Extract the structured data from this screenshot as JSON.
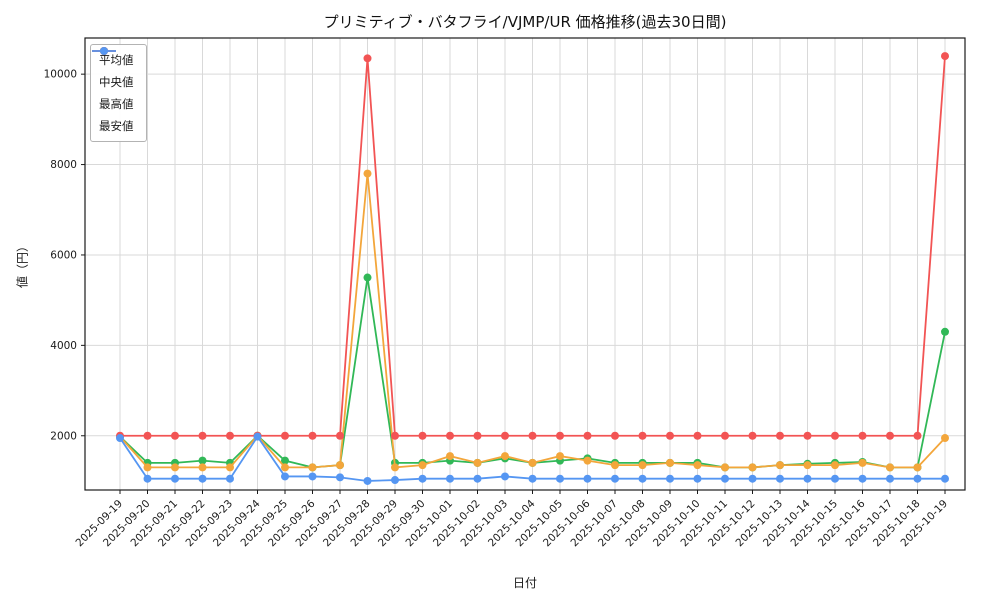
{
  "chart_data": {
    "type": "line",
    "title": "プリミティブ・バタフライ/VJMP/UR 価格推移(過去30日間)",
    "xlabel": "日付",
    "ylabel": "値（円）",
    "x": [
      "2025-09-19",
      "2025-09-20",
      "2025-09-21",
      "2025-09-22",
      "2025-09-23",
      "2025-09-24",
      "2025-09-25",
      "2025-09-26",
      "2025-09-27",
      "2025-09-28",
      "2025-09-29",
      "2025-09-30",
      "2025-10-01",
      "2025-10-02",
      "2025-10-03",
      "2025-10-04",
      "2025-10-05",
      "2025-10-06",
      "2025-10-07",
      "2025-10-08",
      "2025-10-09",
      "2025-10-10",
      "2025-10-11",
      "2025-10-12",
      "2025-10-13",
      "2025-10-14",
      "2025-10-15",
      "2025-10-16",
      "2025-10-17",
      "2025-10-18",
      "2025-10-19"
    ],
    "series": [
      {
        "name": "平均値",
        "color": "#31b857",
        "values": [
          1980,
          1400,
          1400,
          1450,
          1400,
          2000,
          1450,
          1300,
          1350,
          5500,
          1400,
          1400,
          1450,
          1400,
          1500,
          1400,
          1450,
          1500,
          1400,
          1400,
          1400,
          1400,
          1300,
          1300,
          1350,
          1380,
          1400,
          1420,
          1300,
          1300,
          4300
        ]
      },
      {
        "name": "中央値",
        "color": "#f3a63b",
        "values": [
          1980,
          1300,
          1300,
          1300,
          1300,
          2000,
          1300,
          1300,
          1350,
          7800,
          1300,
          1350,
          1550,
          1400,
          1550,
          1400,
          1550,
          1450,
          1350,
          1350,
          1400,
          1350,
          1300,
          1300,
          1350,
          1350,
          1350,
          1400,
          1300,
          1300,
          1950
        ]
      },
      {
        "name": "最高値",
        "color": "#f25454",
        "values": [
          2000,
          2000,
          2000,
          2000,
          2000,
          2000,
          2000,
          2000,
          2000,
          10350,
          2000,
          2000,
          2000,
          2000,
          2000,
          2000,
          2000,
          2000,
          2000,
          2000,
          2000,
          2000,
          2000,
          2000,
          2000,
          2000,
          2000,
          2000,
          2000,
          2000,
          10400
        ]
      },
      {
        "name": "最安値",
        "color": "#5596f2",
        "values": [
          1950,
          1050,
          1050,
          1050,
          1050,
          1980,
          1100,
          1100,
          1080,
          1000,
          1020,
          1050,
          1050,
          1050,
          1100,
          1050,
          1050,
          1050,
          1050,
          1050,
          1050,
          1050,
          1050,
          1050,
          1050,
          1050,
          1050,
          1050,
          1050,
          1050,
          1050
        ]
      }
    ],
    "ylim": [
      800,
      10800
    ],
    "yticks": [
      2000,
      4000,
      6000,
      8000,
      10000
    ],
    "grid": true,
    "legend_position": "upper left"
  }
}
